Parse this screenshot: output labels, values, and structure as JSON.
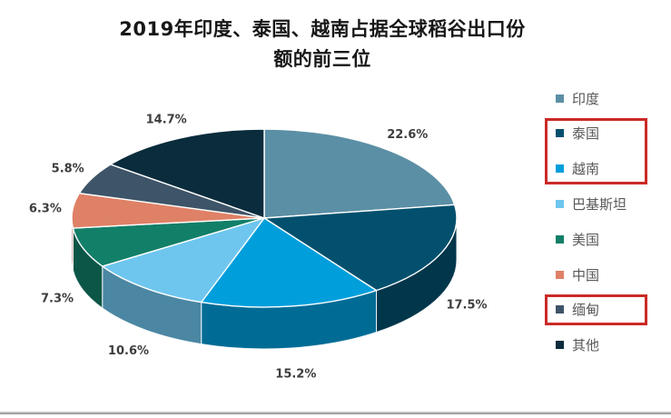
{
  "page": {
    "title_line1": "2019年印度、泰国、越南占据全球稻谷出口份",
    "title_line2": "额的前三位"
  },
  "chart_data": {
    "type": "pie",
    "style": "3d-pie",
    "title": "2019年印度、泰国、越南占据全球稻谷出口份额的前三位",
    "legend_position": "right",
    "categories": [
      "印度",
      "泰国",
      "越南",
      "巴基斯坦",
      "美国",
      "中国",
      "缅甸",
      "其他"
    ],
    "keys": [
      "india",
      "thailand",
      "vietnam",
      "pakistan",
      "usa",
      "china",
      "myanmar",
      "others"
    ],
    "values": [
      22.6,
      17.5,
      15.2,
      10.6,
      7.3,
      6.3,
      5.8,
      14.7
    ],
    "percent_labels": [
      "22.6%",
      "17.5%",
      "15.2%",
      "10.6%",
      "7.3%",
      "6.3%",
      "5.8%",
      "14.7%"
    ],
    "colors": [
      "#5b8fa5",
      "#02506e",
      "#009fdc",
      "#6ec6ef",
      "#127f68",
      "#df8166",
      "#3e5468",
      "#0a2c3c"
    ],
    "annotations": {
      "highlight_color": "#cb2a27",
      "highlighted_groups": [
        {
          "name": "thailand-vietnam",
          "indices": [
            1,
            2
          ]
        },
        {
          "name": "myanmar",
          "indices": [
            6
          ]
        }
      ]
    }
  }
}
